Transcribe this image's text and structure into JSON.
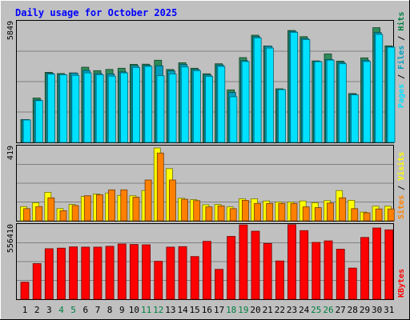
{
  "chart_data": [
    {
      "type": "bar",
      "title": "Daily usage for October 2025",
      "panel": "pages-files-hits",
      "ymax_label": "5849",
      "ylim": [
        0,
        5849
      ],
      "legend": [
        {
          "text": "Pages",
          "color": "#00e0ff"
        },
        {
          "text": "Files",
          "color": "#00a0c0"
        },
        {
          "text": "Hits",
          "color": "#008040"
        }
      ],
      "categories": [
        "1",
        "2",
        "3",
        "4",
        "5",
        "6",
        "7",
        "8",
        "9",
        "10",
        "11",
        "12",
        "13",
        "14",
        "15",
        "16",
        "17",
        "18",
        "19",
        "20",
        "21",
        "22",
        "23",
        "24",
        "25",
        "26",
        "27",
        "28",
        "29",
        "30",
        "31"
      ],
      "series": [
        {
          "name": "Hits",
          "color": "#2e8b57",
          "values": [
            1120,
            2180,
            3440,
            3380,
            3410,
            3690,
            3520,
            3580,
            3640,
            3830,
            3840,
            4030,
            3580,
            3910,
            3640,
            3370,
            3860,
            2580,
            4160,
            5260,
            4730,
            2630,
            5490,
            5190,
            4000,
            4340,
            3990,
            2400,
            4150,
            5630,
            4740
          ]
        },
        {
          "name": "Files",
          "color": "#00a0c0",
          "values": [
            1120,
            2080,
            3390,
            3330,
            3400,
            3530,
            3380,
            3360,
            3460,
            3770,
            3780,
            3760,
            3510,
            3820,
            3580,
            3310,
            3800,
            2450,
            4010,
            5190,
            4720,
            2600,
            5450,
            5100,
            3980,
            4070,
            3920,
            2360,
            4030,
            5390,
            4700
          ]
        },
        {
          "name": "Pages",
          "color": "#00e0ff",
          "values": [
            1100,
            2050,
            3350,
            3320,
            3290,
            3410,
            3320,
            3250,
            3410,
            3670,
            3730,
            3270,
            3360,
            3700,
            3520,
            3240,
            3730,
            2240,
            3970,
            5130,
            4630,
            2590,
            5400,
            5050,
            3960,
            4040,
            3860,
            2330,
            3970,
            5300,
            4670
          ]
        }
      ]
    },
    {
      "type": "bar",
      "panel": "visits-sites",
      "ymax_label": "419",
      "ylim": [
        0,
        419
      ],
      "legend": [
        {
          "text": "Sites",
          "color": "#ff8000"
        },
        {
          "text": "Visits",
          "color": "#ffff00"
        }
      ],
      "categories": [
        "1",
        "2",
        "3",
        "4",
        "5",
        "6",
        "7",
        "8",
        "9",
        "10",
        "11",
        "12",
        "13",
        "14",
        "15",
        "16",
        "17",
        "18",
        "19",
        "20",
        "21",
        "22",
        "23",
        "24",
        "25",
        "26",
        "27",
        "28",
        "29",
        "30",
        "31"
      ],
      "series": [
        {
          "name": "Visits",
          "color": "#ffff00",
          "values": [
            82,
            104,
            164,
            70,
            94,
            140,
            154,
            160,
            146,
            144,
            174,
            419,
            300,
            130,
            122,
            92,
            94,
            80,
            126,
            126,
            114,
            108,
            108,
            114,
            104,
            116,
            174,
            118,
            50,
            84,
            84
          ]
        },
        {
          "name": "Sites",
          "color": "#ff8000",
          "values": [
            70,
            82,
            132,
            58,
            88,
            144,
            150,
            178,
            178,
            136,
            235,
            390,
            235,
            124,
            116,
            80,
            86,
            70,
            118,
            100,
            100,
            100,
            100,
            80,
            76,
            102,
            132,
            70,
            46,
            68,
            68
          ]
        }
      ]
    },
    {
      "type": "bar",
      "panel": "kbytes",
      "ymax_label": "556410",
      "ylim": [
        0,
        556410
      ],
      "legend": [
        {
          "text": "KBytes",
          "color": "#ff0000"
        }
      ],
      "categories": [
        "1",
        "2",
        "3",
        "4",
        "5",
        "6",
        "7",
        "8",
        "9",
        "10",
        "11",
        "12",
        "13",
        "14",
        "15",
        "16",
        "17",
        "18",
        "19",
        "20",
        "21",
        "22",
        "23",
        "24",
        "25",
        "26",
        "27",
        "28",
        "29",
        "30",
        "31"
      ],
      "series": [
        {
          "name": "KBytes",
          "color": "#ff0000",
          "values": [
            130000,
            272000,
            386000,
            390000,
            400000,
            398000,
            398000,
            404000,
            422000,
            418000,
            416000,
            290000,
            398000,
            402000,
            326000,
            442000,
            228000,
            480000,
            568000,
            520000,
            426000,
            292000,
            570000,
            524000,
            434000,
            446000,
            382000,
            238000,
            472000,
            544000,
            530000
          ]
        }
      ]
    }
  ],
  "weekend_days": [
    "4",
    "5",
    "11",
    "12",
    "18",
    "19",
    "25",
    "26"
  ]
}
